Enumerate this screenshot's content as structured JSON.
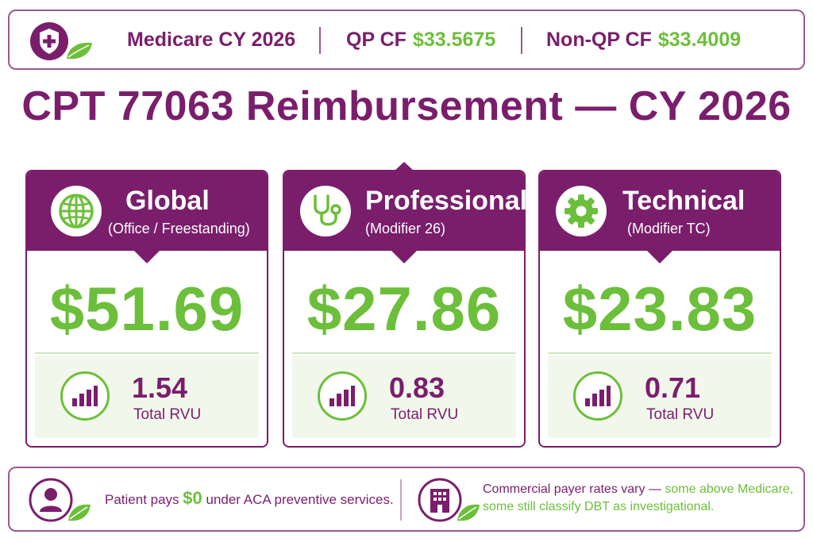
{
  "header": {
    "program": "Medicare CY 2026",
    "qp_label": "QP CF",
    "qp_value": "$33.5675",
    "nonqp_label": "Non-QP CF",
    "nonqp_value": "$33.4009"
  },
  "title": "CPT 77063 Reimbursement — CY 2026",
  "cards": [
    {
      "title": "Global",
      "subtitle": "(Office / Freestanding)",
      "amount": "$51.69",
      "rvu": "1.54",
      "rvu_label": "Total RVU",
      "icon": "globe-icon"
    },
    {
      "title": "Professional",
      "subtitle": "(Modifier 26)",
      "amount": "$27.86",
      "rvu": "0.83",
      "rvu_label": "Total RVU",
      "icon": "stethoscope-icon"
    },
    {
      "title": "Technical",
      "subtitle": "(Modifier TC)",
      "amount": "$23.83",
      "rvu": "0.71",
      "rvu_label": "Total RVU",
      "icon": "gear-icon"
    }
  ],
  "footer": {
    "patient_pre": "Patient pays ",
    "patient_amount": "$0",
    "patient_post": " under ACA preventive services.",
    "commercial_line1_a": "Commercial payer rates vary — ",
    "commercial_line1_b": "some above Medicare,",
    "commercial_line2": "some still classify DBT as investigational."
  },
  "colors": {
    "purple": "#7a1e6c",
    "green": "#6cbf3a"
  }
}
